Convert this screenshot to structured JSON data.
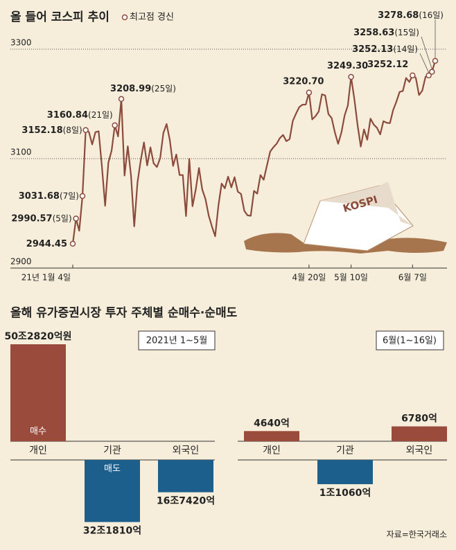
{
  "chart_data": [
    {
      "type": "line",
      "title": "올 들어 코스피 추이",
      "marker_legend": "최고점 경신",
      "illustration_label": "KOSPI",
      "categories": [
        "21년 1월 4일",
        null,
        null,
        null,
        null,
        null,
        null,
        null,
        null,
        null,
        null,
        null,
        null,
        null,
        null,
        null,
        null,
        null,
        null,
        null,
        null,
        null,
        null,
        null,
        null,
        null,
        null,
        null,
        null,
        null,
        null,
        null,
        null,
        null,
        null,
        null,
        null,
        null,
        null,
        null,
        null,
        null,
        null,
        null,
        null,
        null,
        null,
        null,
        null,
        null,
        null,
        null,
        null,
        null,
        null,
        null,
        null,
        null,
        null,
        null,
        null,
        null,
        null,
        null,
        null,
        null,
        null,
        null,
        null,
        null,
        null,
        null,
        null,
        "4월 20일",
        null,
        null,
        null,
        null,
        null,
        null,
        null,
        null,
        null,
        null,
        null,
        null,
        "5월 10일",
        null,
        null,
        null,
        null,
        null,
        null,
        null,
        null,
        null,
        null,
        null,
        null,
        null,
        null,
        null,
        null,
        null,
        null,
        "6월 7일",
        null,
        null,
        null,
        null,
        null,
        null,
        null
      ],
      "series": [
        {
          "color": "#8c4a3b",
          "values": [
            2944.45,
            2990.57,
            2968.21,
            3031.68,
            3152.18,
            3148.45,
            3125.95,
            3148.29,
            3149.93,
            3085.9,
            3013.93,
            3092.66,
            3114.55,
            3160.84,
            3140.63,
            3208.99,
            3069.05,
            3122.56,
            3069.05,
            2976.21,
            3056.53,
            3096.81,
            3129.68,
            3087.55,
            3120.63,
            3091.24,
            3084.67,
            3100.58,
            3147,
            3163.25,
            3133.73,
            3086.66,
            3107.62,
            3070.09,
            3070,
            2994.98,
            3099.69,
            3012.95,
            3043.49,
            3082.99,
            3043.87,
            3026.26,
            2996.11,
            2976.12,
            2958.12,
            3013.7,
            3054.39,
            3045.71,
            3067.17,
            3047.5,
            3066.01,
            3039.53,
            3035.46,
            3004.74,
            2996.35,
            2995.55,
            3041.01,
            3036.04,
            3070,
            3061.42,
            3087.4,
            3112.8,
            3120.83,
            3127.2,
            3137.53,
            3143.26,
            3131.88,
            3135.59,
            3169.08,
            3182.38,
            3194.33,
            3198.62,
            3198.84,
            3220.7,
            3171.66,
            3177.52,
            3186.1,
            3217.53,
            3215.42,
            3181.47,
            3174.07,
            3147.86,
            3127.2,
            3147.37,
            3178.74,
            3197.2,
            3249.3,
            3209.43,
            3161.66,
            3122.11,
            3153.32,
            3134.52,
            3173.05,
            3162.28,
            3156.42,
            3144.3,
            3168.43,
            3165.51,
            3164.81,
            3188.73,
            3203.92,
            3221.87,
            3223.6,
            3247.43,
            3240.08,
            3252.12,
            3247.83,
            3216.18,
            3224.23,
            3249.32,
            3252.13,
            3258.63,
            3278.68
          ]
        }
      ],
      "ylim": [
        2900,
        3300
      ],
      "yticks": [
        2900,
        3100,
        3300
      ],
      "grid": true,
      "annotations": [
        {
          "value_label": "2944.45"
        },
        {
          "value_label": "2990.57",
          "day": "(5일)"
        },
        {
          "value_label": "3031.68",
          "day": "(7일)"
        },
        {
          "value_label": "3152.18",
          "day": "(8일)"
        },
        {
          "value_label": "3160.84",
          "day": "(21일)"
        },
        {
          "value_label": "3208.99",
          "day": "(25일)"
        },
        {
          "value_label": "3220.70"
        },
        {
          "value_label": "3249.30"
        },
        {
          "value_label": "3252.12"
        },
        {
          "value_label": "3252.13",
          "day": "(14일)"
        },
        {
          "value_label": "3258.63",
          "day": "(15일)"
        },
        {
          "value_label": "3278.68",
          "day": "(16일)"
        }
      ]
    },
    {
      "type": "bar",
      "title": "올해 유가증권시장 투자 주체별 순매수·순매도",
      "subtitle": "2021년 1~5월",
      "categories": [
        "개인",
        "기관",
        "외국인"
      ],
      "values": [
        502820,
        -321810,
        -167420
      ],
      "value_labels": [
        "50조2820억원",
        "32조1810억",
        "16조7420억"
      ],
      "buy_label": "매수",
      "sell_label": "매도",
      "positive_color": "#9a4b3b",
      "negative_color": "#1c5e8c"
    },
    {
      "type": "bar",
      "subtitle": "6월(1~16일)",
      "categories": [
        "개인",
        "기관",
        "외국인"
      ],
      "values": [
        4640,
        -11060,
        6780
      ],
      "value_labels": [
        "4640억",
        "1조1060억",
        "6780억"
      ],
      "positive_color": "#9a4b3b",
      "negative_color": "#1c5e8c"
    }
  ],
  "source": "자료=한국거래소"
}
